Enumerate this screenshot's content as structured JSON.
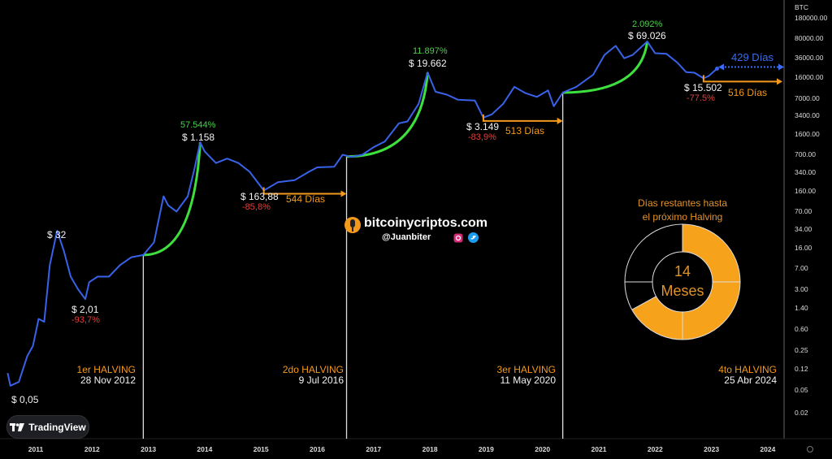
{
  "chart_data": {
    "type": "line",
    "title": "",
    "yscale": "log",
    "ylabel": "BTC",
    "ylim": [
      0.012,
      260000
    ],
    "xlim": [
      2010.45,
      2024.9
    ],
    "y_ticks": [
      "180000.00",
      "80000.00",
      "36000.00",
      "16000.00",
      "7000.00",
      "3400.00",
      "1600.00",
      "700.00",
      "340.00",
      "160.00",
      "70.00",
      "34.00",
      "16.00",
      "7.00",
      "3.00",
      "1.40",
      "0.60",
      "0.25",
      "0.12",
      "0.05",
      "0.02"
    ],
    "x_ticks": [
      "2011",
      "2012",
      "2013",
      "2014",
      "2015",
      "2016",
      "2017",
      "2018",
      "2019",
      "2020",
      "2021",
      "2022",
      "2023",
      "2024"
    ],
    "series": [
      {
        "name": "BTC price",
        "color": "#3a62e8",
        "x": [
          2010.5,
          2010.55,
          2010.7,
          2010.85,
          2010.95,
          2011.05,
          2011.15,
          2011.25,
          2011.38,
          2011.5,
          2011.62,
          2011.75,
          2011.88,
          2011.95,
          2012.1,
          2012.3,
          2012.5,
          2012.7,
          2012.91,
          2013.1,
          2013.27,
          2013.35,
          2013.5,
          2013.7,
          2013.82,
          2013.92,
          2014.0,
          2014.2,
          2014.4,
          2014.6,
          2014.8,
          2015.05,
          2015.3,
          2015.6,
          2015.85,
          2016.0,
          2016.3,
          2016.45,
          2016.6,
          2016.8,
          2017.0,
          2017.2,
          2017.45,
          2017.6,
          2017.8,
          2017.96,
          2018.1,
          2018.3,
          2018.5,
          2018.8,
          2018.95,
          2019.1,
          2019.3,
          2019.5,
          2019.7,
          2019.9,
          2020.1,
          2020.2,
          2020.36,
          2020.6,
          2020.9,
          2021.1,
          2021.3,
          2021.45,
          2021.6,
          2021.86,
          2022.0,
          2022.2,
          2022.4,
          2022.55,
          2022.7,
          2022.86,
          2022.95,
          2023.1
        ],
        "y": [
          0.1,
          0.06,
          0.07,
          0.2,
          0.3,
          0.9,
          0.8,
          8,
          32,
          14,
          5,
          3,
          2.01,
          4,
          5,
          5,
          8,
          11,
          12,
          20,
          130,
          90,
          70,
          130,
          400,
          1158,
          800,
          500,
          600,
          500,
          350,
          163.88,
          230,
          250,
          350,
          420,
          430,
          700,
          640,
          700,
          950,
          1200,
          2500,
          2700,
          5500,
          19662,
          9000,
          8000,
          6500,
          6300,
          3149,
          3600,
          5500,
          11000,
          8500,
          7300,
          9500,
          5000,
          8700,
          11000,
          18000,
          40000,
          58000,
          35000,
          40000,
          69026,
          43000,
          42000,
          29000,
          20000,
          19500,
          15502,
          17000,
          23000
        ]
      }
    ],
    "halvings": [
      {
        "label": "1er HALVING",
        "date": "28 Nov 2012",
        "x": 2012.91,
        "price": 12
      },
      {
        "label": "2do HALVING",
        "date": "9 Jul 2016",
        "x": 2016.52,
        "price": 650
      },
      {
        "label": "3er HALVING",
        "date": "11 May 2020",
        "x": 2020.36,
        "price": 8700
      },
      {
        "label": "4to HALVING",
        "date": "25 Abr 2024",
        "x": 2024.31
      }
    ],
    "cycles": [
      {
        "peak_label": "$ 1.158",
        "gain": "57.544%",
        "peak_x": 2013.92,
        "peak_y": 1158,
        "low_label": "$ 163,88",
        "drawdown": "-85,8%",
        "low_x": 2015.05,
        "low_y": 163.88,
        "days": "544 Días"
      },
      {
        "peak_label": "$ 19.662",
        "gain": "11.897%",
        "peak_x": 2017.96,
        "peak_y": 19662,
        "low_label": "$ 3.149",
        "drawdown": "-83,9%",
        "low_x": 2018.95,
        "low_y": 3149,
        "days": "513 Días"
      },
      {
        "peak_label": "$ 69.026",
        "gain": "2.092%",
        "peak_x": 2021.86,
        "peak_y": 69026,
        "low_label": "$ 15.502",
        "drawdown": "-77.5%",
        "low_x": 2022.86,
        "low_y": 15502,
        "days": "516 Días"
      }
    ],
    "early": {
      "peak_label": "$ 32",
      "low_label": "$ 2,01",
      "drawdown": "-93,7%",
      "start_label": "$ 0,05"
    },
    "remaining_days_label": "429 Días",
    "colors": {
      "gain": "#4cd04c",
      "drawdown": "#e0403a",
      "accent": "#f39a1c",
      "line": "#3a62e8"
    }
  },
  "countdown": {
    "title_line1": "Días restantes hasta",
    "title_line2": "el próximo Halving",
    "value": "14",
    "unit": "Meses",
    "filled_fraction": 0.67
  },
  "brand": {
    "site": "bitcoinycriptos.com",
    "handle": "@Juanbiter"
  },
  "tradingview": {
    "label": "TradingView"
  }
}
